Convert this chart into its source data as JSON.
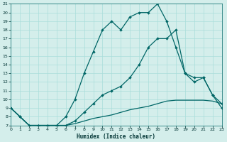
{
  "xlabel": "Humidex (Indice chaleur)",
  "bg_color": "#d4eeeb",
  "grid_color": "#aaddda",
  "line_color": "#006666",
  "xlim": [
    0,
    23
  ],
  "ylim": [
    7,
    21
  ],
  "xticks": [
    0,
    1,
    2,
    3,
    4,
    5,
    6,
    7,
    8,
    9,
    10,
    11,
    12,
    13,
    14,
    15,
    16,
    17,
    18,
    19,
    20,
    21,
    22,
    23
  ],
  "yticks": [
    7,
    8,
    9,
    10,
    11,
    12,
    13,
    14,
    15,
    16,
    17,
    18,
    19,
    20,
    21
  ],
  "s1_x": [
    0,
    1,
    2,
    3,
    4,
    5,
    6,
    7,
    8,
    9,
    10,
    11,
    12,
    13,
    14,
    15,
    16,
    17,
    18,
    19,
    20,
    21,
    22,
    23
  ],
  "s1_y": [
    9,
    8,
    7,
    7,
    7,
    7,
    8,
    10,
    13,
    15.5,
    18,
    19,
    18,
    19.5,
    20,
    20,
    21,
    19,
    16,
    13,
    12,
    12.5,
    10.5,
    9
  ],
  "s2_x": [
    0,
    1,
    2,
    3,
    4,
    5,
    6,
    7,
    8,
    9,
    10,
    11,
    12,
    13,
    14,
    15,
    16,
    17,
    18,
    19,
    20,
    21,
    22,
    23
  ],
  "s2_y": [
    9,
    8,
    7,
    7,
    7,
    7,
    7,
    7.5,
    8.5,
    9.5,
    10.5,
    11,
    11.5,
    12.5,
    14,
    16,
    17,
    17,
    18,
    13,
    12.5,
    12.5,
    10.5,
    9.5
  ],
  "s3_x": [
    0,
    1,
    2,
    3,
    4,
    5,
    6,
    7,
    8,
    9,
    10,
    11,
    12,
    13,
    14,
    15,
    16,
    17,
    18,
    19,
    20,
    21,
    22,
    23
  ],
  "s3_y": [
    9,
    8,
    7,
    7,
    7,
    7,
    7,
    7.2,
    7.5,
    7.8,
    8,
    8.2,
    8.5,
    8.8,
    9,
    9.2,
    9.5,
    9.8,
    9.9,
    9.9,
    9.9,
    9.9,
    9.8,
    9.5
  ],
  "s1_markers": true,
  "s2_markers": true,
  "s3_markers": false
}
